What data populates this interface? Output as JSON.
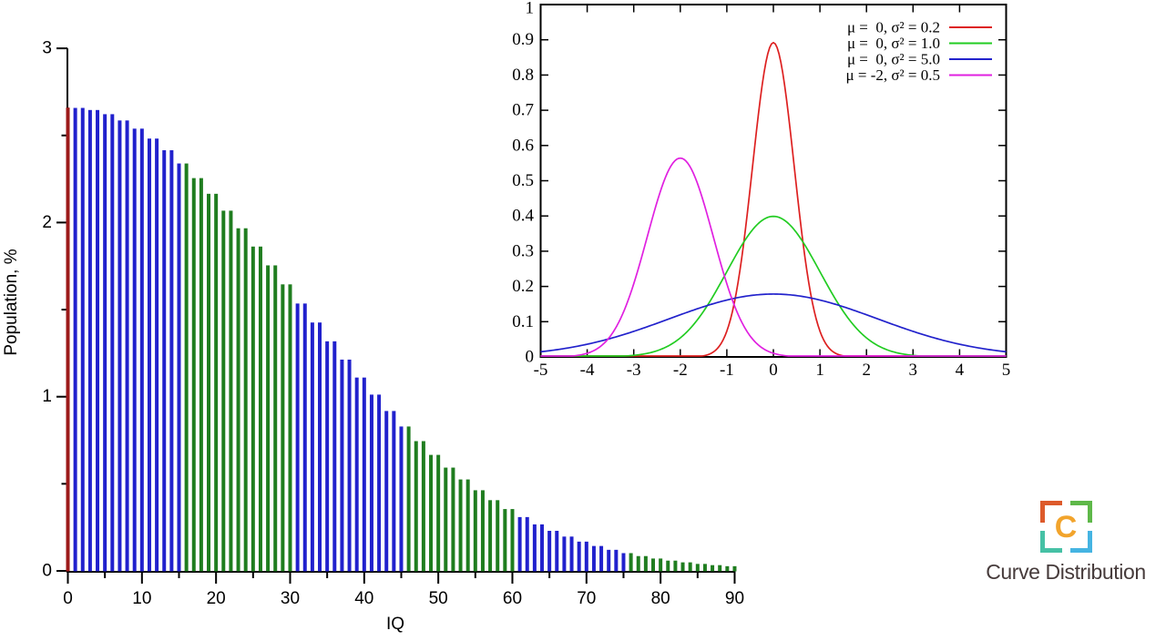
{
  "page": {
    "background_color": "#ffffff"
  },
  "logo": {
    "letter": "C",
    "text": "Curve Distribution",
    "colors": {
      "top_left": "#dd5a2b",
      "top_right": "#5eb849",
      "bottom_left": "#46c1a5",
      "bottom_right": "#45b4e2",
      "letter": "#f2a42c",
      "text": "#463b3b"
    }
  },
  "chart_data": [
    {
      "type": "bar",
      "name": "iq-population-bar-chart",
      "title": "",
      "xlabel": "IQ",
      "ylabel": "Population, %",
      "xlim": [
        0,
        90
      ],
      "ylim": [
        0,
        3
      ],
      "grid": false,
      "axis_color": "#000000",
      "x_start": 0,
      "x_step": 1,
      "x_major_ticks": [
        0,
        10,
        20,
        30,
        40,
        50,
        60,
        70,
        80,
        90
      ],
      "x_tick_labels": [
        "0",
        "10",
        "20",
        "30",
        "40",
        "50",
        "60",
        "70",
        "80",
        "90"
      ],
      "x_minor_ticks": [
        5,
        15,
        25,
        35,
        45,
        55,
        65,
        75,
        85
      ],
      "y_major_ticks": [
        0,
        1,
        2,
        3
      ],
      "y_tick_labels": [
        "0",
        "1",
        "2",
        "3"
      ],
      "y_minor_ticks": [
        0.5,
        1.5,
        2.5
      ],
      "values": [
        2.66,
        2.658,
        2.658,
        2.646,
        2.646,
        2.622,
        2.622,
        2.586,
        2.586,
        2.539,
        2.539,
        2.482,
        2.482,
        2.415,
        2.415,
        2.339,
        2.339,
        2.255,
        2.255,
        2.165,
        2.165,
        2.068,
        2.068,
        1.967,
        1.967,
        1.862,
        1.862,
        1.754,
        1.754,
        1.645,
        1.645,
        1.535,
        1.535,
        1.426,
        1.426,
        1.318,
        1.318,
        1.213,
        1.213,
        1.11,
        1.11,
        1.012,
        1.012,
        0.918,
        0.918,
        0.829,
        0.829,
        0.745,
        0.745,
        0.666,
        0.666,
        0.593,
        0.593,
        0.525,
        0.525,
        0.463,
        0.463,
        0.406,
        0.406,
        0.355,
        0.355,
        0.309,
        0.309,
        0.267,
        0.267,
        0.23,
        0.23,
        0.197,
        0.197,
        0.168,
        0.168,
        0.143,
        0.143,
        0.121,
        0.121,
        0.102,
        0.102,
        0.085,
        0.085,
        0.071,
        0.071,
        0.059,
        0.059,
        0.049,
        0.049,
        0.04,
        0.04,
        0.033,
        0.033,
        0.027,
        0.027
      ],
      "bar_color_segments": [
        {
          "start": 0,
          "end": 0,
          "color": "#9c1a1a"
        },
        {
          "start": 1,
          "end": 15,
          "color": "#2121cd"
        },
        {
          "start": 16,
          "end": 30,
          "color": "#1f7d1f"
        },
        {
          "start": 31,
          "end": 45,
          "color": "#2121cd"
        },
        {
          "start": 46,
          "end": 60,
          "color": "#1f7d1f"
        },
        {
          "start": 61,
          "end": 75,
          "color": "#2121cd"
        },
        {
          "start": 76,
          "end": 90,
          "color": "#1f7d1f"
        }
      ]
    },
    {
      "type": "line",
      "name": "normal-distribution-pdf-inset",
      "title": "",
      "xlabel": "",
      "ylabel": "",
      "xlim": [
        -5,
        5
      ],
      "ylim": [
        0,
        1
      ],
      "grid": false,
      "legend_position": "top-right",
      "axis_color": "#000000",
      "x_ticks": [
        -5,
        -4,
        -3,
        -2,
        -1,
        0,
        1,
        2,
        3,
        4,
        5
      ],
      "x_tick_labels": [
        "-5",
        "-4",
        "-3",
        "-2",
        "-1",
        "0",
        "1",
        "2",
        "3",
        "4",
        "5"
      ],
      "y_ticks": [
        0,
        0.1,
        0.2,
        0.3,
        0.4,
        0.5,
        0.6,
        0.7,
        0.8,
        0.9,
        1
      ],
      "y_tick_labels": [
        "0",
        "0.1",
        "0.2",
        "0.3",
        "0.4",
        "0.5",
        "0.6",
        "0.7",
        "0.8",
        "0.9",
        "1"
      ],
      "series": [
        {
          "label": "μ =  0, σ² = 0.2",
          "mu": 0,
          "sigma2": 0.2,
          "peak": 0.892,
          "color": "#dd2020"
        },
        {
          "label": "μ =  0, σ² = 1.0",
          "mu": 0,
          "sigma2": 1.0,
          "peak": 0.399,
          "color": "#22cc22"
        },
        {
          "label": "μ =  0, σ² = 5.0",
          "mu": 0,
          "sigma2": 5.0,
          "peak": 0.178,
          "color": "#2222cc"
        },
        {
          "label": "μ = -2, σ² = 0.5",
          "mu": -2,
          "sigma2": 0.5,
          "peak": 0.564,
          "color": "#e020e0"
        }
      ]
    }
  ]
}
